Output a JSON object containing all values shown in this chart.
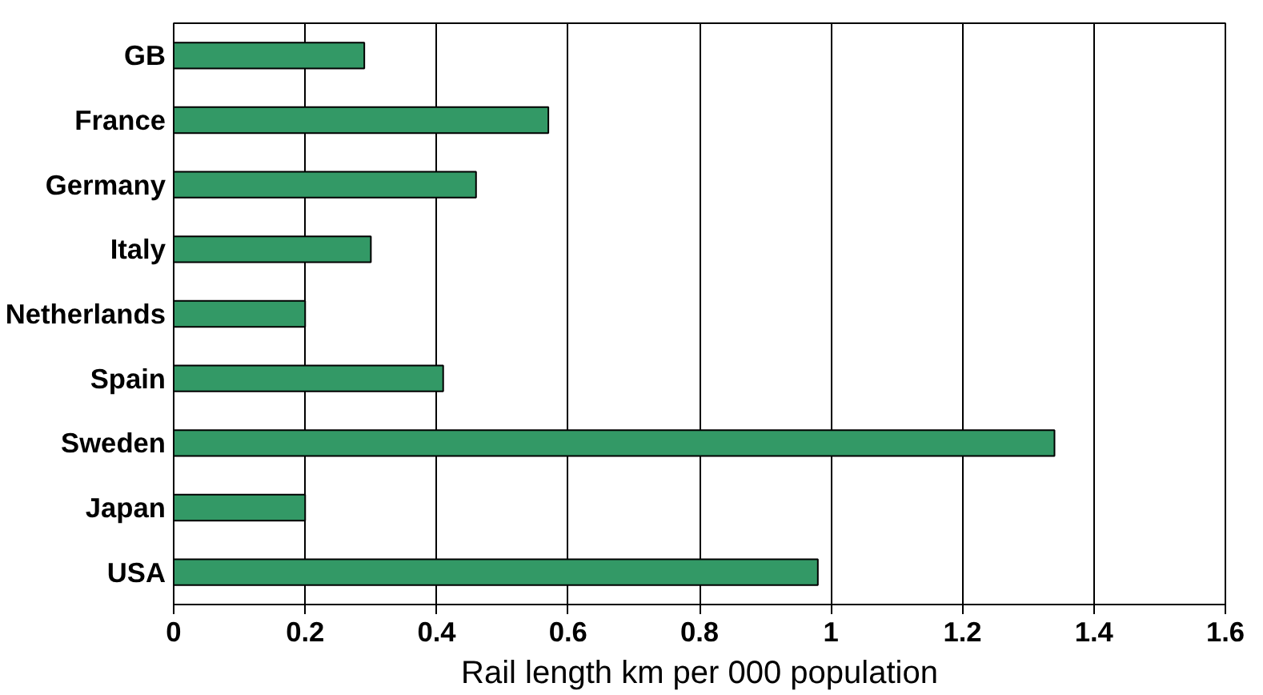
{
  "chart_data": {
    "type": "bar",
    "orientation": "horizontal",
    "xlabel": "Rail length km per 000 population",
    "categories": [
      "GB",
      "France",
      "Germany",
      "Italy",
      "Netherlands",
      "Spain",
      "Sweden",
      "Japan",
      "USA"
    ],
    "values": [
      0.29,
      0.57,
      0.46,
      0.3,
      0.2,
      0.41,
      1.34,
      0.2,
      0.98
    ],
    "color": "#339966",
    "xlim": [
      0,
      1.6
    ],
    "xticks": [
      0,
      0.2,
      0.4,
      0.6,
      0.8,
      1,
      1.2,
      1.4,
      1.6
    ],
    "grid": "x"
  }
}
